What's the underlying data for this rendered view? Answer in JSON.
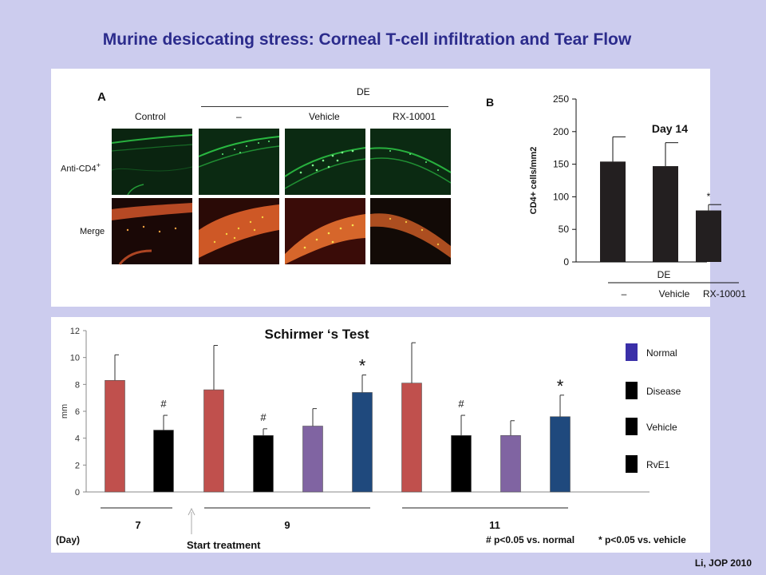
{
  "title": "Murine desiccating stress: Corneal T-cell infiltration and Tear Flow",
  "credit": "Li, JOP 2010",
  "panelA": {
    "letter": "A",
    "group_label": "DE",
    "columns": [
      "Control",
      "–",
      "Vehicle",
      "RX-10001"
    ],
    "rows": [
      "Anti-CD4",
      "Merge"
    ],
    "row_superscript": "+",
    "image_colors": {
      "anti_cd4_bg": "#0b2a12",
      "anti_cd4_signal": "#2fd24a",
      "merge_bg": "#3a0c08",
      "merge_signal": "#e8602a"
    }
  },
  "colors": {
    "normal": "#c0504d",
    "disease": "#000000",
    "vehicle": "#8064a2",
    "rve1": "#1f497d",
    "panelB_bar": "#231f20"
  },
  "chart_data": [
    {
      "type": "bar",
      "letter": "B",
      "annotation": "Day 14",
      "ylabel": "CD4+ cells/mm2",
      "ylim": [
        0,
        250
      ],
      "yticks": [
        0,
        50,
        100,
        150,
        200,
        250
      ],
      "group_label": "DE",
      "categories": [
        "–",
        "Vehicle",
        "RX-10001"
      ],
      "values": [
        154,
        147,
        79
      ],
      "errors": [
        38,
        36,
        9
      ],
      "marks": [
        "",
        "",
        "*"
      ]
    },
    {
      "type": "bar",
      "title": "Schirmer ‘s Test",
      "ylabel": "mm",
      "ylim": [
        0,
        12
      ],
      "yticks": [
        0,
        2,
        4,
        6,
        8,
        10,
        12
      ],
      "x_group_name": "(Day)",
      "groups": [
        {
          "label": "7",
          "bars": [
            {
              "series": "Normal",
              "value": 8.3,
              "error": 1.9,
              "mark": ""
            },
            {
              "series": "Disease",
              "value": 4.6,
              "error": 1.1,
              "mark": "#"
            }
          ]
        },
        {
          "label": "9",
          "bars": [
            {
              "series": "Normal",
              "value": 7.6,
              "error": 3.3,
              "mark": ""
            },
            {
              "series": "Disease",
              "value": 4.2,
              "error": 0.5,
              "mark": "#"
            },
            {
              "series": "Vehicle",
              "value": 4.9,
              "error": 1.3,
              "mark": ""
            },
            {
              "series": "RvE1",
              "value": 7.4,
              "error": 1.3,
              "mark": "*"
            }
          ]
        },
        {
          "label": "11",
          "bars": [
            {
              "series": "Normal",
              "value": 8.1,
              "error": 3.0,
              "mark": ""
            },
            {
              "series": "Disease",
              "value": 4.2,
              "error": 1.5,
              "mark": "#"
            },
            {
              "series": "Vehicle",
              "value": 4.2,
              "error": 1.1,
              "mark": ""
            },
            {
              "series": "RvE1",
              "value": 5.6,
              "error": 1.6,
              "mark": "*"
            }
          ]
        }
      ],
      "legend": [
        {
          "label": "Normal",
          "color": "#3a2fa8"
        },
        {
          "label": "Disease",
          "color": "#000000"
        },
        {
          "label": "Vehicle",
          "color": "#000000"
        },
        {
          "label": "RvE1",
          "color": "#000000"
        }
      ],
      "annotation_text": "Start treatment",
      "footnotes": [
        "# p<0.05 vs. normal",
        "* p<0.05 vs. vehicle"
      ]
    }
  ]
}
